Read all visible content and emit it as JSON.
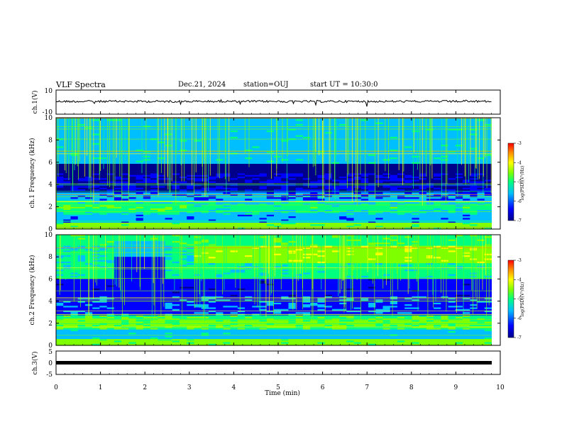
{
  "header": {
    "title": "VLF Spectra",
    "date": "Dec.21, 2024",
    "station": "station=OUJ",
    "start": "start UT =  10:30:0"
  },
  "chart_data": [
    {
      "panel": "ch1_voltage",
      "type": "line",
      "ylabel": "ch.1(V)",
      "ylim": [
        -10,
        10
      ],
      "yticks": [
        10,
        -10
      ],
      "xlim": [
        0,
        10
      ],
      "series_description": "waveform around -1 V with small spikes"
    },
    {
      "panel": "ch1_spectrogram",
      "type": "heatmap",
      "ylabel": "ch.1 Frequency (kHz)",
      "ylim": [
        0,
        10
      ],
      "yticks": [
        0,
        2,
        4,
        6,
        8,
        10
      ],
      "xlim": [
        0,
        10
      ],
      "colorbar": {
        "label": "log(PSD)(V²/Hz)",
        "range": [
          -7,
          -3
        ],
        "ticks": [
          -3,
          -4,
          -5,
          -6,
          -7
        ]
      }
    },
    {
      "panel": "ch2_spectrogram",
      "type": "heatmap",
      "ylabel": "ch.2 Frequency (kHz)",
      "ylim": [
        0,
        10
      ],
      "yticks": [
        0,
        2,
        4,
        6,
        8,
        10
      ],
      "xlim": [
        0,
        10
      ],
      "colorbar": {
        "label": "log(PSD)(V²/Hz)",
        "range": [
          -7,
          -3
        ],
        "ticks": [
          -3,
          -4,
          -5,
          -6,
          -7
        ]
      }
    },
    {
      "panel": "ch3_voltage",
      "type": "line",
      "ylabel": "ch.3(V)",
      "ylim": [
        -5,
        5
      ],
      "yticks": [
        5,
        0,
        -5
      ],
      "xlim": [
        0,
        10
      ],
      "series_description": "flat line near -1 V"
    }
  ],
  "xaxis": {
    "label": "Time (min)",
    "ticks": [
      0,
      1,
      2,
      3,
      4,
      5,
      6,
      7,
      8,
      9,
      10
    ]
  },
  "colors": {
    "colormap": [
      "#00008b",
      "#0000ff",
      "#00bfff",
      "#00ff7f",
      "#7fff00",
      "#ffff00",
      "#ff8c00",
      "#ff0000"
    ]
  }
}
